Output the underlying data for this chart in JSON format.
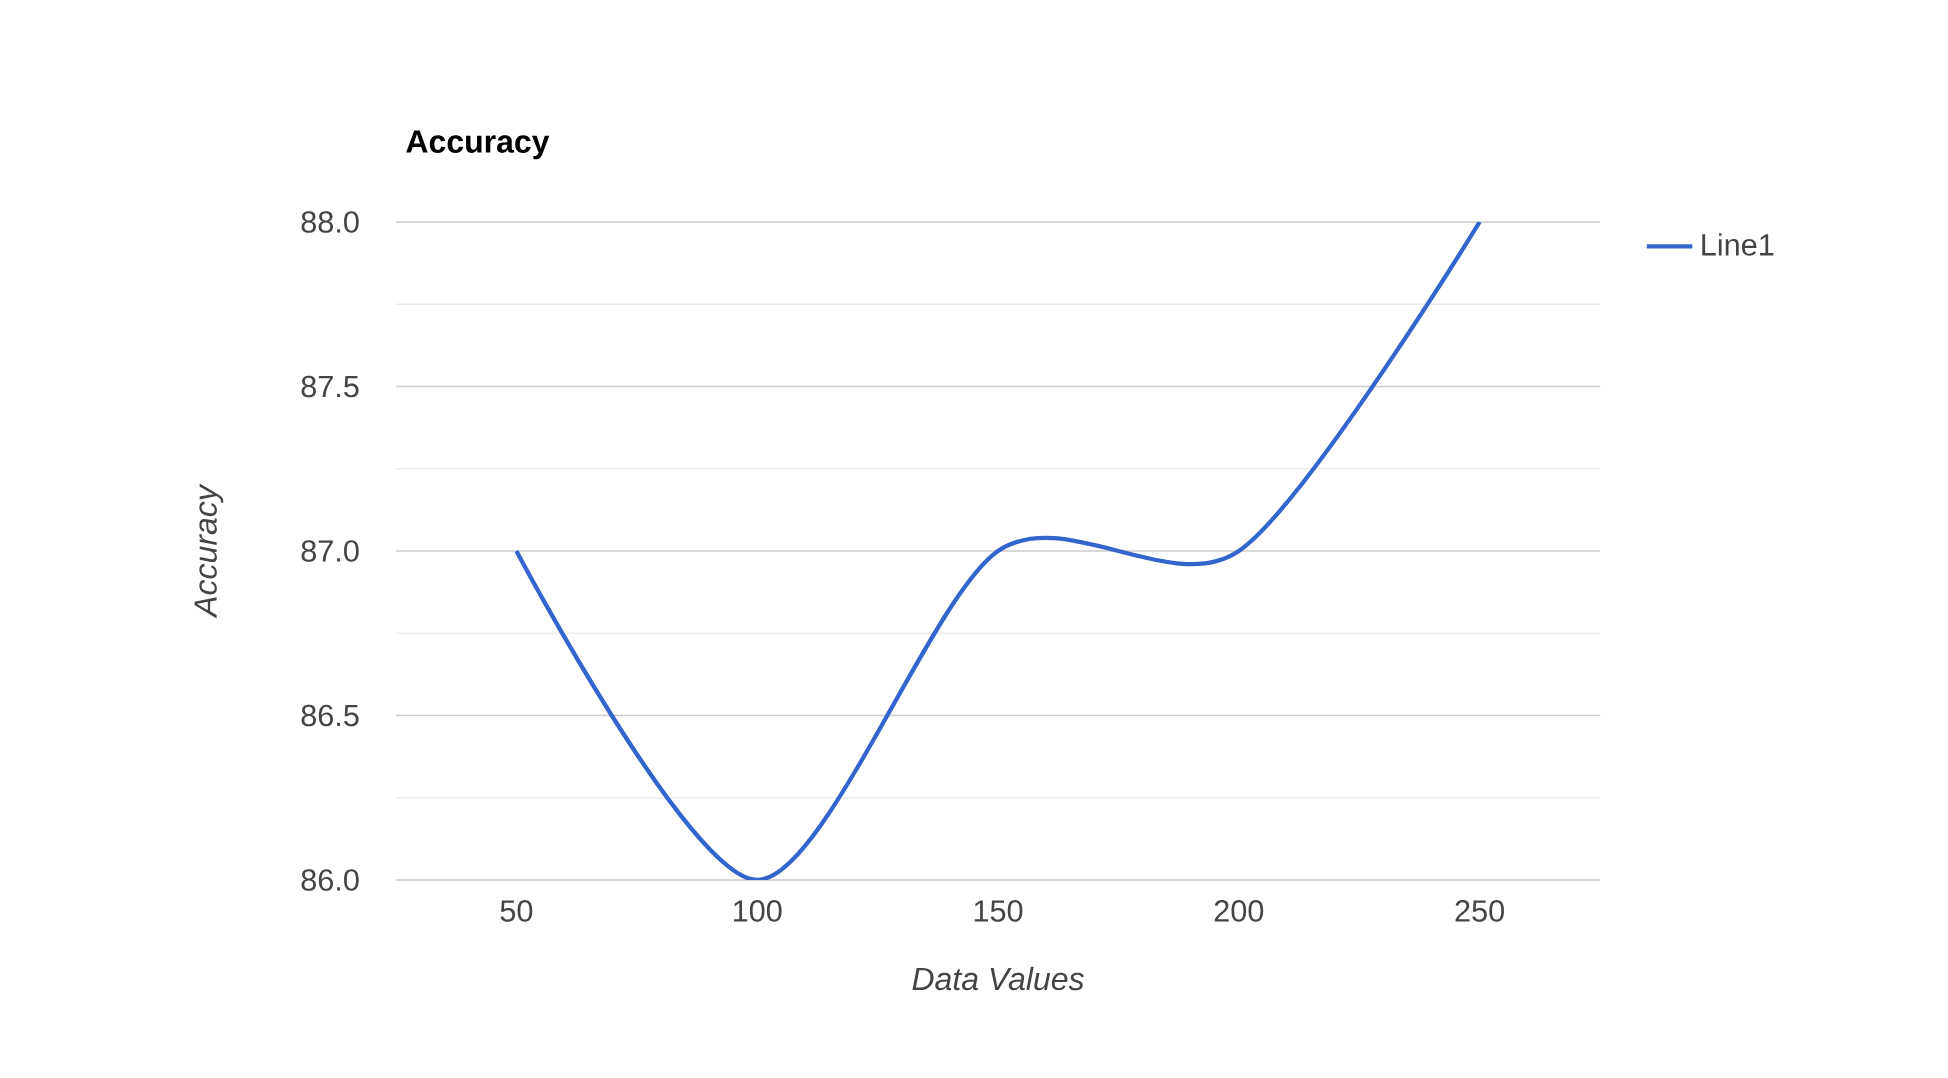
{
  "chart_data": {
    "type": "line",
    "title": "Accuracy",
    "xlabel": "Data Values",
    "ylabel": "Accuracy",
    "x": [
      50,
      100,
      150,
      200,
      250
    ],
    "series": [
      {
        "name": "Line1",
        "color": "#3366cc",
        "values": [
          87.0,
          86.0,
          87.0,
          87.0,
          88.0
        ]
      }
    ],
    "xlim": [
      25,
      275
    ],
    "ylim": [
      86.0,
      88.0
    ],
    "xticks": [
      50,
      100,
      150,
      200,
      250
    ],
    "yticks": [
      {
        "value": 86,
        "label": "86.0"
      },
      {
        "value": 86.5,
        "label": "86.5"
      },
      {
        "value": 87,
        "label": "87.0"
      },
      {
        "value": 87.5,
        "label": "87.5"
      },
      {
        "value": 88,
        "label": "88.0"
      }
    ],
    "grid": "y",
    "legend": "right",
    "marker": "none",
    "line_style": "solid"
  }
}
